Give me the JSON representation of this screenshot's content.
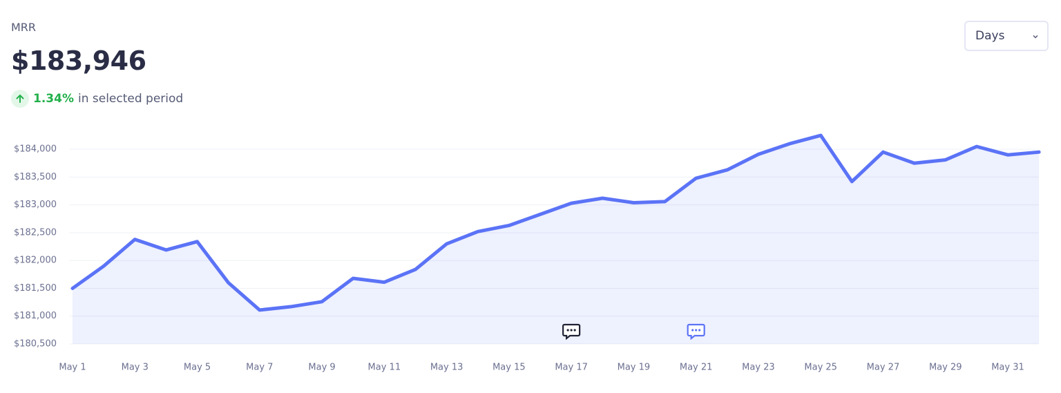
{
  "header": {
    "label": "MRR",
    "value": "$183,946",
    "change": "1.34%",
    "change_text": "in selected period"
  },
  "controls": {
    "period": "Days"
  },
  "chart_data": {
    "type": "line",
    "categories": [
      "May 1",
      null,
      "May 3",
      null,
      "May 5",
      null,
      "May 7",
      null,
      "May 9",
      null,
      "May 11",
      null,
      "May 13",
      null,
      "May 15",
      null,
      "May 17",
      null,
      "May 19",
      null,
      "May 21",
      null,
      "May 23",
      null,
      "May 25",
      null,
      "May 27",
      null,
      "May 29",
      null,
      "May 31",
      null
    ],
    "values": [
      181500,
      181900,
      182380,
      182190,
      182340,
      181600,
      181110,
      181170,
      181260,
      181680,
      181610,
      181840,
      182300,
      182520,
      182630,
      182830,
      183030,
      183120,
      183040,
      183060,
      183480,
      183630,
      183910,
      184100,
      184250,
      183420,
      183950,
      183750,
      183810,
      184050,
      183900,
      183950
    ],
    "color": "#5b73f6",
    "ylim": [
      180500,
      184300
    ],
    "yticks": [
      {
        "value": 180500,
        "label": "$180,500"
      },
      {
        "value": 181000,
        "label": "$181,000"
      },
      {
        "value": 181500,
        "label": "$181,500"
      },
      {
        "value": 182000,
        "label": "$182,000"
      },
      {
        "value": 182500,
        "label": "$182,500"
      },
      {
        "value": 183000,
        "label": "$183,000"
      },
      {
        "value": 183500,
        "label": "$183,500"
      },
      {
        "value": 184000,
        "label": "$184,000"
      }
    ],
    "grid": true
  }
}
